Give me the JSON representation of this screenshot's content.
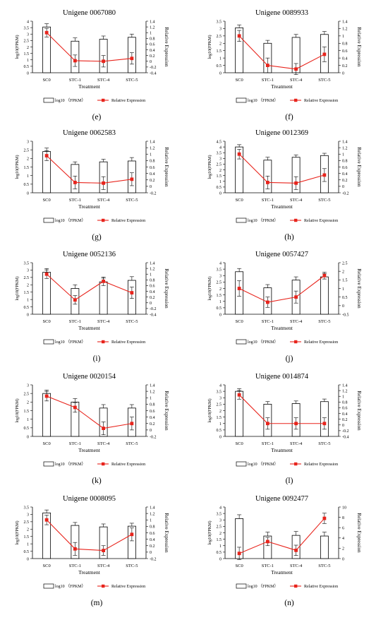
{
  "legend": {
    "bar_label": "log10 （FPKM）",
    "line_label": "Relative Expression"
  },
  "colors": {
    "bar_fill": "#ffffff",
    "bar_stroke": "#000000",
    "line": "#e8241c",
    "marker": "#e8241c",
    "error": "#000000"
  },
  "chart_data": [
    {
      "type": "bar",
      "panel_label": "(e)",
      "title": "Unigene 0067080",
      "categories": [
        "SC0",
        "STC-1",
        "STC-4",
        "STC-5"
      ],
      "xlabel": "Treatment",
      "ylabel": "log10(FPKM)",
      "y2label": "Relative Expression",
      "y_ticks": [
        "0",
        "0.5",
        "1",
        "1.5",
        "2",
        "2.5",
        "3",
        "3.5",
        "4"
      ],
      "y2_ticks": [
        "-0.4",
        "-0.2",
        "0",
        "0.2",
        "0.4",
        "0.6",
        "0.8",
        "1",
        "1.2",
        "1.4"
      ],
      "ylim": [
        0,
        4
      ],
      "y2lim": [
        -0.4,
        1.4
      ],
      "series": [
        {
          "name": "log10 （FPKM）",
          "kind": "bar",
          "values": [
            3.55,
            2.45,
            2.6,
            2.75
          ],
          "errors": [
            0.25,
            0.25,
            0.25,
            0.25
          ]
        },
        {
          "name": "Relative Expression",
          "kind": "line",
          "values": [
            1.0,
            0.02,
            0.0,
            0.1
          ],
          "errors": [
            0.15,
            0.2,
            0.2,
            0.2
          ]
        }
      ]
    },
    {
      "type": "bar",
      "panel_label": "(f)",
      "title": "Unigene 0089933",
      "categories": [
        "SC0",
        "STC-1",
        "STC-4",
        "STC-5"
      ],
      "xlabel": "Treatment",
      "ylabel": "log10(FPKM)",
      "y2label": "Relative Expression",
      "y_ticks": [
        "0",
        "0.5",
        "1",
        "1.5",
        "2",
        "2.5",
        "3",
        "3.5"
      ],
      "y2_ticks": [
        "0",
        "0.2",
        "0.4",
        "0.6",
        "0.8",
        "1",
        "1.2",
        "1.4"
      ],
      "ylim": [
        0,
        3.5
      ],
      "y2lim": [
        0,
        1.4
      ],
      "series": [
        {
          "name": "log10 （FPKM）",
          "kind": "bar",
          "values": [
            3.05,
            2.0,
            2.4,
            2.6
          ],
          "errors": [
            0.2,
            0.2,
            0.2,
            0.2
          ]
        },
        {
          "name": "Relative Expression",
          "kind": "line",
          "values": [
            1.0,
            0.2,
            0.1,
            0.5
          ],
          "errors": [
            0.15,
            0.2,
            0.15,
            0.2
          ]
        }
      ]
    },
    {
      "type": "bar",
      "panel_label": "(g)",
      "title": "Unigene 0062583",
      "categories": [
        "SC0",
        "STC-1",
        "STC-4",
        "STC-5"
      ],
      "xlabel": "Treatment",
      "ylabel": "log10(FPKM)",
      "y2label": "Relative Expression",
      "y_ticks": [
        "0",
        "0.5",
        "1",
        "1.5",
        "2",
        "2.5",
        "3"
      ],
      "y2_ticks": [
        "-0.2",
        "0",
        "0.2",
        "0.4",
        "0.6",
        "0.8",
        "1",
        "1.2",
        "1.4"
      ],
      "ylim": [
        0,
        3
      ],
      "y2lim": [
        -0.2,
        1.4
      ],
      "series": [
        {
          "name": "log10 （FPKM）",
          "kind": "bar",
          "values": [
            2.4,
            1.65,
            1.8,
            1.85
          ],
          "errors": [
            0.2,
            0.15,
            0.15,
            0.2
          ]
        },
        {
          "name": "Relative Expression",
          "kind": "line",
          "values": [
            0.95,
            0.12,
            0.1,
            0.22
          ],
          "errors": [
            0.15,
            0.2,
            0.2,
            0.2
          ]
        }
      ]
    },
    {
      "type": "bar",
      "panel_label": "(h)",
      "title": "Unigene 0012369",
      "categories": [
        "SC0",
        "STC-1",
        "STC-4",
        "STC-5"
      ],
      "xlabel": "Treatment",
      "ylabel": "log10(FPKM)",
      "y2label": "Relative Expression",
      "y_ticks": [
        "0",
        "0.5",
        "1",
        "1.5",
        "2",
        "2.5",
        "3",
        "3.5",
        "4",
        "4.5"
      ],
      "y2_ticks": [
        "-0.2",
        "0",
        "0.2",
        "0.4",
        "0.6",
        "0.8",
        "1",
        "1.2",
        "1.4"
      ],
      "ylim": [
        0,
        4.5
      ],
      "y2lim": [
        -0.2,
        1.4
      ],
      "series": [
        {
          "name": "log10 （FPKM）",
          "kind": "bar",
          "values": [
            4.0,
            2.85,
            3.1,
            3.25
          ],
          "errors": [
            0.2,
            0.25,
            0.2,
            0.2
          ]
        },
        {
          "name": "Relative Expression",
          "kind": "line",
          "values": [
            1.0,
            0.12,
            0.1,
            0.35
          ],
          "errors": [
            0.15,
            0.2,
            0.2,
            0.2
          ]
        }
      ]
    },
    {
      "type": "bar",
      "panel_label": "(i)",
      "title": "Unigene 0052136",
      "categories": [
        "SC0",
        "STC-1",
        "STC-4",
        "STC-5"
      ],
      "xlabel": "Treatment",
      "ylabel": "log10(FPKM)",
      "y2label": "Relative Expression",
      "y_ticks": [
        "0",
        "0.5",
        "1",
        "1.5",
        "2",
        "2.5",
        "3",
        "3.5"
      ],
      "y2_ticks": [
        "-0.4",
        "-0.2",
        "0",
        "0.2",
        "0.4",
        "0.6",
        "0.8",
        "1",
        "1.2",
        "1.4"
      ],
      "ylim": [
        0,
        3.5
      ],
      "y2lim": [
        -0.4,
        1.4
      ],
      "series": [
        {
          "name": "log10 （FPKM）",
          "kind": "bar",
          "values": [
            2.85,
            1.75,
            2.2,
            2.3
          ],
          "errors": [
            0.25,
            0.25,
            0.25,
            0.25
          ]
        },
        {
          "name": "Relative Expression",
          "kind": "line",
          "values": [
            1.0,
            0.1,
            0.75,
            0.35
          ],
          "errors": [
            0.15,
            0.15,
            0.15,
            0.2
          ]
        }
      ]
    },
    {
      "type": "bar",
      "panel_label": "(j)",
      "title": "Unigene 0057427",
      "categories": [
        "SC0",
        "STC-1",
        "STC-4",
        "STC-5"
      ],
      "xlabel": "Treatment",
      "ylabel": "log10(FPKM)",
      "y2label": "Relative Expression",
      "y_ticks": [
        "0",
        "0.5",
        "1",
        "1.5",
        "2",
        "2.5",
        "3",
        "3.5",
        "4"
      ],
      "y2_ticks": [
        "-0.5",
        "0",
        "0.5",
        "1",
        "1.5",
        "2",
        "2.5"
      ],
      "ylim": [
        0,
        4
      ],
      "y2lim": [
        -0.5,
        2.5
      ],
      "series": [
        {
          "name": "log10 （FPKM）",
          "kind": "bar",
          "values": [
            3.3,
            2.05,
            2.65,
            2.9
          ],
          "errors": [
            0.25,
            0.25,
            0.25,
            0.25
          ]
        },
        {
          "name": "Relative Expression",
          "kind": "line",
          "values": [
            1.0,
            0.2,
            0.5,
            1.75
          ],
          "errors": [
            0.45,
            0.3,
            0.35,
            0.2
          ]
        }
      ]
    },
    {
      "type": "bar",
      "panel_label": "(k)",
      "title": "Unigene 0020154",
      "categories": [
        "SC0",
        "STC-1",
        "STC-4",
        "STC-5"
      ],
      "xlabel": "Treatment",
      "ylabel": "log10(FPKM)",
      "y2label": "Relative Expression",
      "y_ticks": [
        "0",
        "0.5",
        "1",
        "1.5",
        "2",
        "2.5",
        "3"
      ],
      "y2_ticks": [
        "-0.2",
        "0",
        "0.2",
        "0.4",
        "0.6",
        "0.8",
        "1",
        "1.2",
        "1.4"
      ],
      "ylim": [
        0,
        3
      ],
      "y2lim": [
        -0.2,
        1.4
      ],
      "series": [
        {
          "name": "log10 （FPKM）",
          "kind": "bar",
          "values": [
            2.5,
            2.0,
            1.65,
            1.65
          ],
          "errors": [
            0.2,
            0.2,
            0.2,
            0.2
          ]
        },
        {
          "name": "Relative Expression",
          "kind": "line",
          "values": [
            1.05,
            0.7,
            0.05,
            0.2
          ],
          "errors": [
            0.15,
            0.15,
            0.2,
            0.2
          ]
        }
      ]
    },
    {
      "type": "bar",
      "panel_label": "(l)",
      "title": "Unigene 0014874",
      "categories": [
        "SC0",
        "STC-1",
        "STC-4",
        "STC-5"
      ],
      "xlabel": "Treatment",
      "ylabel": "log10(FPKM)",
      "y2label": "Relative Expression",
      "y_ticks": [
        "0",
        "0.5",
        "1",
        "1.5",
        "2",
        "2.5",
        "3",
        "3.5",
        "4"
      ],
      "y2_ticks": [
        "-0.4",
        "-0.2",
        "0",
        "0.2",
        "0.4",
        "0.6",
        "0.8",
        "1",
        "1.2",
        "1.4"
      ],
      "ylim": [
        0,
        4
      ],
      "y2lim": [
        -0.4,
        1.4
      ],
      "series": [
        {
          "name": "log10 （FPKM）",
          "kind": "bar",
          "values": [
            3.5,
            2.5,
            2.55,
            2.7
          ],
          "errors": [
            0.2,
            0.2,
            0.2,
            0.2
          ]
        },
        {
          "name": "Relative Expression",
          "kind": "line",
          "values": [
            1.05,
            0.05,
            0.05,
            0.05
          ],
          "errors": [
            0.15,
            0.2,
            0.2,
            0.2
          ]
        }
      ]
    },
    {
      "type": "bar",
      "panel_label": "(m)",
      "title": "Unigene 0008095",
      "categories": [
        "SC0",
        "STC-1",
        "STC-4",
        "STC-5"
      ],
      "xlabel": "Treatment",
      "ylabel": "log10(FPKM)",
      "y2label": "Relative Expression",
      "y_ticks": [
        "0",
        "0.5",
        "1",
        "1.5",
        "2",
        "2.5",
        "3",
        "3.5"
      ],
      "y2_ticks": [
        "-0.2",
        "0",
        "0.2",
        "0.4",
        "0.6",
        "0.8",
        "1",
        "1.2",
        "1.4"
      ],
      "ylim": [
        0,
        3.5
      ],
      "y2lim": [
        -0.2,
        1.4
      ],
      "series": [
        {
          "name": "log10 （FPKM）",
          "kind": "bar",
          "values": [
            3.1,
            2.25,
            2.15,
            2.2
          ],
          "errors": [
            0.2,
            0.2,
            0.2,
            0.2
          ]
        },
        {
          "name": "Relative Expression",
          "kind": "line",
          "values": [
            1.0,
            0.1,
            0.05,
            0.55
          ],
          "errors": [
            0.15,
            0.2,
            0.15,
            0.2
          ]
        }
      ]
    },
    {
      "type": "bar",
      "panel_label": "(n)",
      "title": "Unigene 0092477",
      "categories": [
        "SC0",
        "STC-1",
        "STC-4",
        "STC-5"
      ],
      "xlabel": "Treatment",
      "ylabel": "log10(FPKM)",
      "y2label": "Relative Expression",
      "y_ticks": [
        "0",
        "0.5",
        "1",
        "1.5",
        "2",
        "2.5",
        "3",
        "3.5",
        "4"
      ],
      "y2_ticks": [
        "0",
        "2",
        "4",
        "6",
        "8",
        "10"
      ],
      "ylim": [
        0,
        4
      ],
      "y2lim": [
        0,
        10
      ],
      "series": [
        {
          "name": "log10 （FPKM）",
          "kind": "bar",
          "values": [
            3.1,
            1.75,
            1.8,
            1.75
          ],
          "errors": [
            0.3,
            0.3,
            0.3,
            0.3
          ]
        },
        {
          "name": "Relative Expression",
          "kind": "line",
          "values": [
            1.0,
            3.3,
            1.6,
            7.8
          ],
          "errors": [
            1.2,
            0.8,
            1.0,
            1.0
          ]
        }
      ]
    }
  ]
}
